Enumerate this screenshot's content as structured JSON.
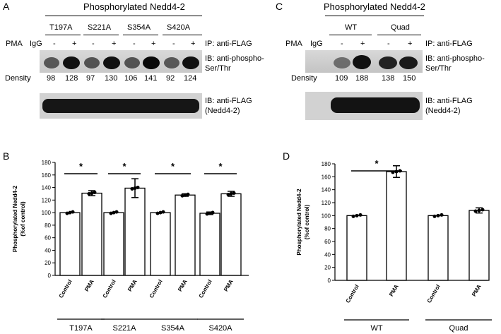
{
  "panels": {
    "A": {
      "letter": "A",
      "title": "Phosphorylated Nedd4-2",
      "mutants": [
        "T197A",
        "S221A",
        "S354A",
        "S420A"
      ],
      "pma_label": "PMA",
      "igg_label": "IgG",
      "signs": [
        "-",
        "+",
        "-",
        "+",
        "-",
        "+",
        "-",
        "+"
      ],
      "ip_label": "IP: anti-FLAG",
      "ib1_label_line1": "IB: anti-phospho-",
      "ib1_label_line2": "Ser/Thr",
      "density_label": "Density",
      "densities": [
        "98",
        "128",
        "97",
        "130",
        "106",
        "141",
        "92",
        "124"
      ],
      "ib2_label_line1": "IB: anti-FLAG",
      "ib2_label_line2": "(Nedd4-2)"
    },
    "C": {
      "letter": "C",
      "title": "Phosphorylated Nedd4-2",
      "groups": [
        "WT",
        "Quad"
      ],
      "pma_label": "PMA",
      "igg_label": "IgG",
      "signs": [
        "-",
        "+",
        "-",
        "+"
      ],
      "ip_label": "IP: anti-FLAG",
      "ib1_label_line1": "IB: anti-phospho-",
      "ib1_label_line2": "Ser/Thr",
      "density_label": "Density",
      "densities": [
        "109",
        "188",
        "138",
        "150"
      ],
      "ib2_label_line1": "IB: anti-FLAG",
      "ib2_label_line2": "(Nedd4-2)"
    },
    "B": {
      "letter": "B"
    },
    "D": {
      "letter": "D"
    }
  },
  "chart_data": [
    {
      "type": "bar",
      "panel": "B",
      "ylabel": "Phosphorylated Nedd4-2 (%of control)",
      "ylabel_line1": "Phosphorylated Nedd4-2",
      "ylabel_line2": "(%of control)",
      "ylim": [
        0,
        180
      ],
      "yticks": [
        "0",
        "20",
        "40",
        "60",
        "80",
        "100",
        "120",
        "140",
        "160",
        "180"
      ],
      "categories": [
        "Control",
        "PMA",
        "Control",
        "PMA",
        "Control",
        "PMA",
        "Control",
        "PMA"
      ],
      "groups": [
        "T197A",
        "S221A",
        "S354A",
        "S420A"
      ],
      "values": [
        100,
        131,
        100,
        139,
        100,
        128,
        99,
        130
      ],
      "errors": [
        0,
        4,
        0,
        15,
        0,
        2,
        2,
        4
      ],
      "significance": [
        "*",
        "*",
        "*",
        "*"
      ],
      "grid": false
    },
    {
      "type": "bar",
      "panel": "D",
      "ylabel": "Phosphorylated Nedd4-2 (%of control)",
      "ylabel_line1": "Phosphorylated Nedd4-2",
      "ylabel_line2": "(%of control)",
      "ylim": [
        0,
        180
      ],
      "yticks": [
        "0",
        "20",
        "40",
        "60",
        "80",
        "100",
        "120",
        "140",
        "160",
        "180"
      ],
      "categories": [
        "Control",
        "PMA",
        "Control",
        "PMA"
      ],
      "groups": [
        "WT",
        "Quad"
      ],
      "values": [
        100,
        168,
        100,
        108
      ],
      "errors": [
        0,
        9,
        0,
        4
      ],
      "significance": [
        "*"
      ],
      "grid": false
    }
  ]
}
